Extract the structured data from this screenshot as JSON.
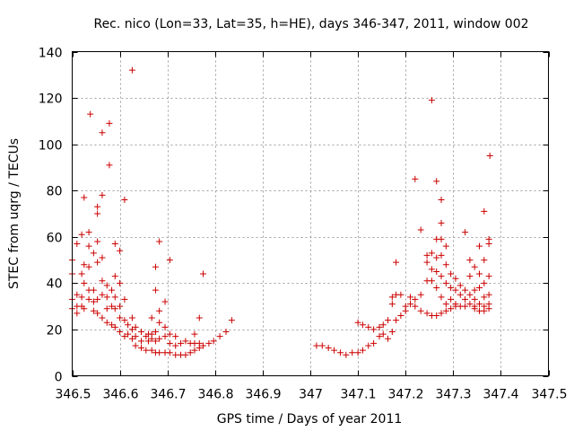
{
  "chart_data": {
    "type": "scatter",
    "title": "Rec. nico (Lon=33, Lat=35, h=HE), days 346-347, 2011, window 002",
    "xlabel": "GPS time / Days of year 2011",
    "ylabel": "STEC from uqrg / TECUs",
    "xlim": [
      346.5,
      347.5
    ],
    "ylim": [
      0,
      140
    ],
    "xticks": [
      346.5,
      346.6,
      346.7,
      346.8,
      346.9,
      347.0,
      347.1,
      347.2,
      347.3,
      347.4,
      347.5
    ],
    "xtick_labels": [
      "346.5",
      "346.6",
      "346.7",
      "346.8",
      "346.9",
      "347",
      "347.1",
      "347.2",
      "347.3",
      "347.4",
      "347.5"
    ],
    "yticks": [
      0,
      20,
      40,
      60,
      80,
      100,
      120,
      140
    ],
    "ytick_labels": [
      "0",
      "20",
      "40",
      "60",
      "80",
      "100",
      "120",
      "140"
    ],
    "grid": true,
    "marker": "+",
    "color": "#cc0000",
    "series": [
      {
        "points": [
          [
            346.5,
            50
          ],
          [
            346.5,
            44
          ],
          [
            346.5,
            33
          ],
          [
            346.5,
            29
          ],
          [
            346.51,
            57
          ],
          [
            346.51,
            35
          ],
          [
            346.51,
            30
          ],
          [
            346.51,
            27
          ],
          [
            346.52,
            61
          ],
          [
            346.52,
            44
          ],
          [
            346.52,
            34
          ],
          [
            346.52,
            30
          ],
          [
            346.525,
            77
          ],
          [
            346.525,
            48
          ],
          [
            346.525,
            40
          ],
          [
            346.525,
            29
          ],
          [
            346.535,
            62
          ],
          [
            346.535,
            56
          ],
          [
            346.535,
            47
          ],
          [
            346.535,
            37
          ],
          [
            346.535,
            33
          ],
          [
            346.538,
            113
          ],
          [
            346.545,
            53
          ],
          [
            346.545,
            37
          ],
          [
            346.545,
            32
          ],
          [
            346.545,
            28
          ],
          [
            346.553,
            73
          ],
          [
            346.553,
            70
          ],
          [
            346.553,
            58
          ],
          [
            346.553,
            49
          ],
          [
            346.553,
            33
          ],
          [
            346.553,
            27
          ],
          [
            346.563,
            105
          ],
          [
            346.563,
            78
          ],
          [
            346.563,
            51
          ],
          [
            346.563,
            41
          ],
          [
            346.563,
            35
          ],
          [
            346.563,
            25
          ],
          [
            346.573,
            39
          ],
          [
            346.573,
            34
          ],
          [
            346.573,
            29
          ],
          [
            346.573,
            23
          ],
          [
            346.578,
            109
          ],
          [
            346.578,
            91
          ],
          [
            346.583,
            37
          ],
          [
            346.583,
            30
          ],
          [
            346.583,
            22
          ],
          [
            346.59,
            57
          ],
          [
            346.59,
            43
          ],
          [
            346.59,
            34
          ],
          [
            346.59,
            29
          ],
          [
            346.59,
            21
          ],
          [
            346.6,
            54
          ],
          [
            346.6,
            40
          ],
          [
            346.6,
            30
          ],
          [
            346.6,
            25
          ],
          [
            346.6,
            19
          ],
          [
            346.61,
            76
          ],
          [
            346.61,
            33
          ],
          [
            346.61,
            24
          ],
          [
            346.61,
            17
          ],
          [
            346.617,
            22
          ],
          [
            346.617,
            18
          ],
          [
            346.626,
            132
          ],
          [
            346.626,
            25
          ],
          [
            346.626,
            20
          ],
          [
            346.626,
            16
          ],
          [
            346.633,
            21
          ],
          [
            346.633,
            17
          ],
          [
            346.633,
            13
          ],
          [
            346.645,
            19
          ],
          [
            346.645,
            15
          ],
          [
            346.645,
            12
          ],
          [
            346.655,
            17
          ],
          [
            346.655,
            11
          ],
          [
            346.66,
            18
          ],
          [
            346.66,
            15
          ],
          [
            346.667,
            25
          ],
          [
            346.667,
            18
          ],
          [
            346.667,
            16
          ],
          [
            346.667,
            11
          ],
          [
            346.675,
            47
          ],
          [
            346.675,
            37
          ],
          [
            346.675,
            19
          ],
          [
            346.675,
            15
          ],
          [
            346.675,
            10
          ],
          [
            346.683,
            58
          ],
          [
            346.683,
            28
          ],
          [
            346.683,
            23
          ],
          [
            346.683,
            16
          ],
          [
            346.683,
            10
          ],
          [
            346.695,
            32
          ],
          [
            346.695,
            21
          ],
          [
            346.695,
            17
          ],
          [
            346.695,
            10
          ],
          [
            346.705,
            50
          ],
          [
            346.705,
            18
          ],
          [
            346.705,
            14
          ],
          [
            346.705,
            10
          ],
          [
            346.717,
            17
          ],
          [
            346.717,
            13
          ],
          [
            346.717,
            9
          ],
          [
            346.728,
            14
          ],
          [
            346.728,
            9
          ],
          [
            346.738,
            15
          ],
          [
            346.738,
            9
          ],
          [
            346.748,
            14
          ],
          [
            346.748,
            10
          ],
          [
            346.757,
            18
          ],
          [
            346.757,
            14
          ],
          [
            346.757,
            11
          ],
          [
            346.767,
            25
          ],
          [
            346.767,
            14
          ],
          [
            346.767,
            12
          ],
          [
            346.775,
            44
          ],
          [
            346.775,
            13
          ],
          [
            346.787,
            14
          ],
          [
            346.797,
            15
          ],
          [
            346.81,
            17
          ],
          [
            346.823,
            19
          ],
          [
            346.835,
            24
          ],
          [
            347.013,
            13
          ],
          [
            347.025,
            13
          ],
          [
            347.038,
            12
          ],
          [
            347.05,
            11
          ],
          [
            347.063,
            10
          ],
          [
            347.075,
            9
          ],
          [
            347.088,
            10
          ],
          [
            347.1,
            23
          ],
          [
            347.1,
            10
          ],
          [
            347.11,
            22
          ],
          [
            347.11,
            11
          ],
          [
            347.122,
            21
          ],
          [
            347.122,
            13
          ],
          [
            347.133,
            20
          ],
          [
            347.133,
            14
          ],
          [
            347.145,
            21
          ],
          [
            347.145,
            17
          ],
          [
            347.153,
            22
          ],
          [
            347.153,
            18
          ],
          [
            347.163,
            24
          ],
          [
            347.163,
            16
          ],
          [
            347.172,
            34
          ],
          [
            347.172,
            31
          ],
          [
            347.172,
            19
          ],
          [
            347.18,
            49
          ],
          [
            347.18,
            35
          ],
          [
            347.18,
            24
          ],
          [
            347.19,
            35
          ],
          [
            347.19,
            26
          ],
          [
            347.2,
            30
          ],
          [
            347.2,
            28
          ],
          [
            347.21,
            34
          ],
          [
            347.21,
            31
          ],
          [
            347.22,
            85
          ],
          [
            347.22,
            33
          ],
          [
            347.22,
            30
          ],
          [
            347.232,
            63
          ],
          [
            347.232,
            35
          ],
          [
            347.232,
            28
          ],
          [
            347.245,
            52
          ],
          [
            347.245,
            49
          ],
          [
            347.245,
            41
          ],
          [
            347.245,
            27
          ],
          [
            347.255,
            119
          ],
          [
            347.255,
            53
          ],
          [
            347.255,
            46
          ],
          [
            347.255,
            41
          ],
          [
            347.255,
            26
          ],
          [
            347.265,
            84
          ],
          [
            347.265,
            59
          ],
          [
            347.265,
            51
          ],
          [
            347.265,
            45
          ],
          [
            347.265,
            38
          ],
          [
            347.265,
            26
          ],
          [
            347.275,
            76
          ],
          [
            347.275,
            66
          ],
          [
            347.275,
            59
          ],
          [
            347.275,
            52
          ],
          [
            347.275,
            43
          ],
          [
            347.275,
            34
          ],
          [
            347.275,
            27
          ],
          [
            347.285,
            56
          ],
          [
            347.285,
            48
          ],
          [
            347.285,
            40
          ],
          [
            347.285,
            31
          ],
          [
            347.285,
            28
          ],
          [
            347.295,
            44
          ],
          [
            347.295,
            38
          ],
          [
            347.295,
            33
          ],
          [
            347.295,
            29
          ],
          [
            347.305,
            42
          ],
          [
            347.305,
            37
          ],
          [
            347.305,
            31
          ],
          [
            347.305,
            30
          ],
          [
            347.315,
            39
          ],
          [
            347.315,
            35
          ],
          [
            347.315,
            30
          ],
          [
            347.325,
            62
          ],
          [
            347.325,
            37
          ],
          [
            347.325,
            33
          ],
          [
            347.325,
            30
          ],
          [
            347.335,
            50
          ],
          [
            347.335,
            43
          ],
          [
            347.335,
            35
          ],
          [
            347.335,
            31
          ],
          [
            347.345,
            47
          ],
          [
            347.345,
            37
          ],
          [
            347.345,
            33
          ],
          [
            347.345,
            30
          ],
          [
            347.345,
            29
          ],
          [
            347.355,
            56
          ],
          [
            347.355,
            44
          ],
          [
            347.355,
            38
          ],
          [
            347.355,
            31
          ],
          [
            347.355,
            28
          ],
          [
            347.365,
            71
          ],
          [
            347.365,
            50
          ],
          [
            347.365,
            40
          ],
          [
            347.365,
            34
          ],
          [
            347.365,
            30
          ],
          [
            347.365,
            28
          ],
          [
            347.375,
            59
          ],
          [
            347.375,
            57
          ],
          [
            347.375,
            43
          ],
          [
            347.375,
            35
          ],
          [
            347.375,
            31
          ],
          [
            347.375,
            29
          ],
          [
            347.377,
            95
          ]
        ]
      }
    ]
  }
}
